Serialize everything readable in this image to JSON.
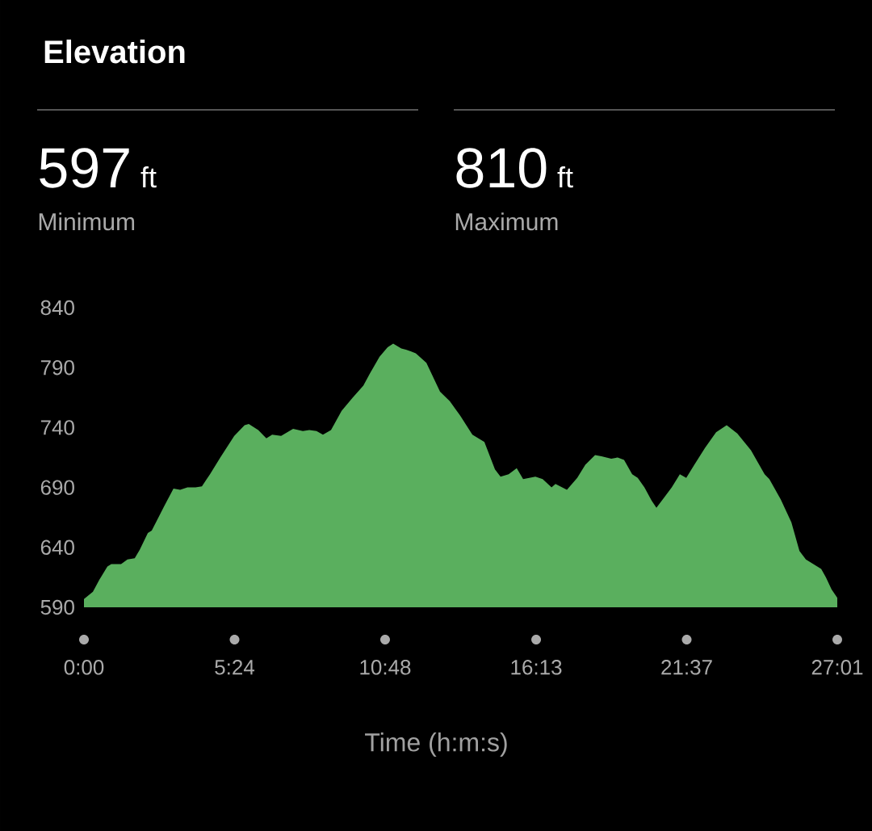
{
  "chart_data": {
    "type": "area",
    "title": "Elevation",
    "xlabel": "Time (h:m:s)",
    "annotations": [
      "597",
      "ft",
      "Minimum",
      "810",
      "ft",
      "Maximum"
    ],
    "x": [
      0,
      0.32,
      0.55,
      0.84,
      0.98,
      1.33,
      1.56,
      1.82,
      2.0,
      2.29,
      2.43,
      2.87,
      3.21,
      3.45,
      3.71,
      4.0,
      4.23,
      4.52,
      4.89,
      5.39,
      5.76,
      5.91,
      6.25,
      6.54,
      6.75,
      7.07,
      7.5,
      7.85,
      8.08,
      8.34,
      8.57,
      8.86,
      9.24,
      9.64,
      10.02,
      10.25,
      10.6,
      10.89,
      11.09,
      11.38,
      11.55,
      11.9,
      12.28,
      12.77,
      13.12,
      13.49,
      13.93,
      14.36,
      14.74,
      14.94,
      15.23,
      15.52,
      15.75,
      16.19,
      16.45,
      16.77,
      16.91,
      17.32,
      17.69,
      17.98,
      18.33,
      18.56,
      18.91,
      19.14,
      19.37,
      19.66,
      19.86,
      20.1,
      20.36,
      20.53,
      20.82,
      21.08,
      21.37,
      21.6,
      21.89,
      22.27,
      22.67,
      23.05,
      23.43,
      23.92,
      24.41,
      24.58,
      24.99,
      25.37,
      25.66,
      25.89,
      26.23,
      26.44,
      26.61,
      26.81,
      27.0167
    ],
    "values": [
      597,
      603,
      613,
      624,
      626,
      626,
      630,
      631,
      638,
      652,
      654,
      674,
      689,
      688,
      690,
      690,
      691,
      701,
      715,
      733,
      742,
      743,
      738,
      731,
      734,
      733,
      739,
      737,
      738,
      737,
      734,
      738,
      754,
      765,
      775,
      785,
      799,
      807,
      810,
      806,
      805,
      802,
      794,
      770,
      762,
      750,
      734,
      728,
      705,
      699,
      701,
      706,
      697,
      699,
      697,
      690,
      693,
      688,
      698,
      709,
      717,
      716,
      714,
      715,
      713,
      701,
      698,
      690,
      679,
      673,
      682,
      690,
      701,
      698,
      709,
      723,
      736,
      742,
      735,
      721,
      701,
      697,
      680,
      661,
      637,
      630,
      625,
      622,
      615,
      605,
      598
    ],
    "color": "#5aaf5e",
    "xlim": [
      0,
      27.0167
    ],
    "ylim": [
      590,
      840
    ],
    "xticks": [
      {
        "value": 0,
        "label": "0:00"
      },
      {
        "value": 5.4,
        "label": "5:24"
      },
      {
        "value": 10.8,
        "label": "10:48"
      },
      {
        "value": 16.2167,
        "label": "16:13"
      },
      {
        "value": 21.6167,
        "label": "21:37"
      },
      {
        "value": 27.0167,
        "label": "27:01"
      }
    ],
    "yticks": [
      590,
      640,
      690,
      740,
      790,
      840
    ]
  }
}
